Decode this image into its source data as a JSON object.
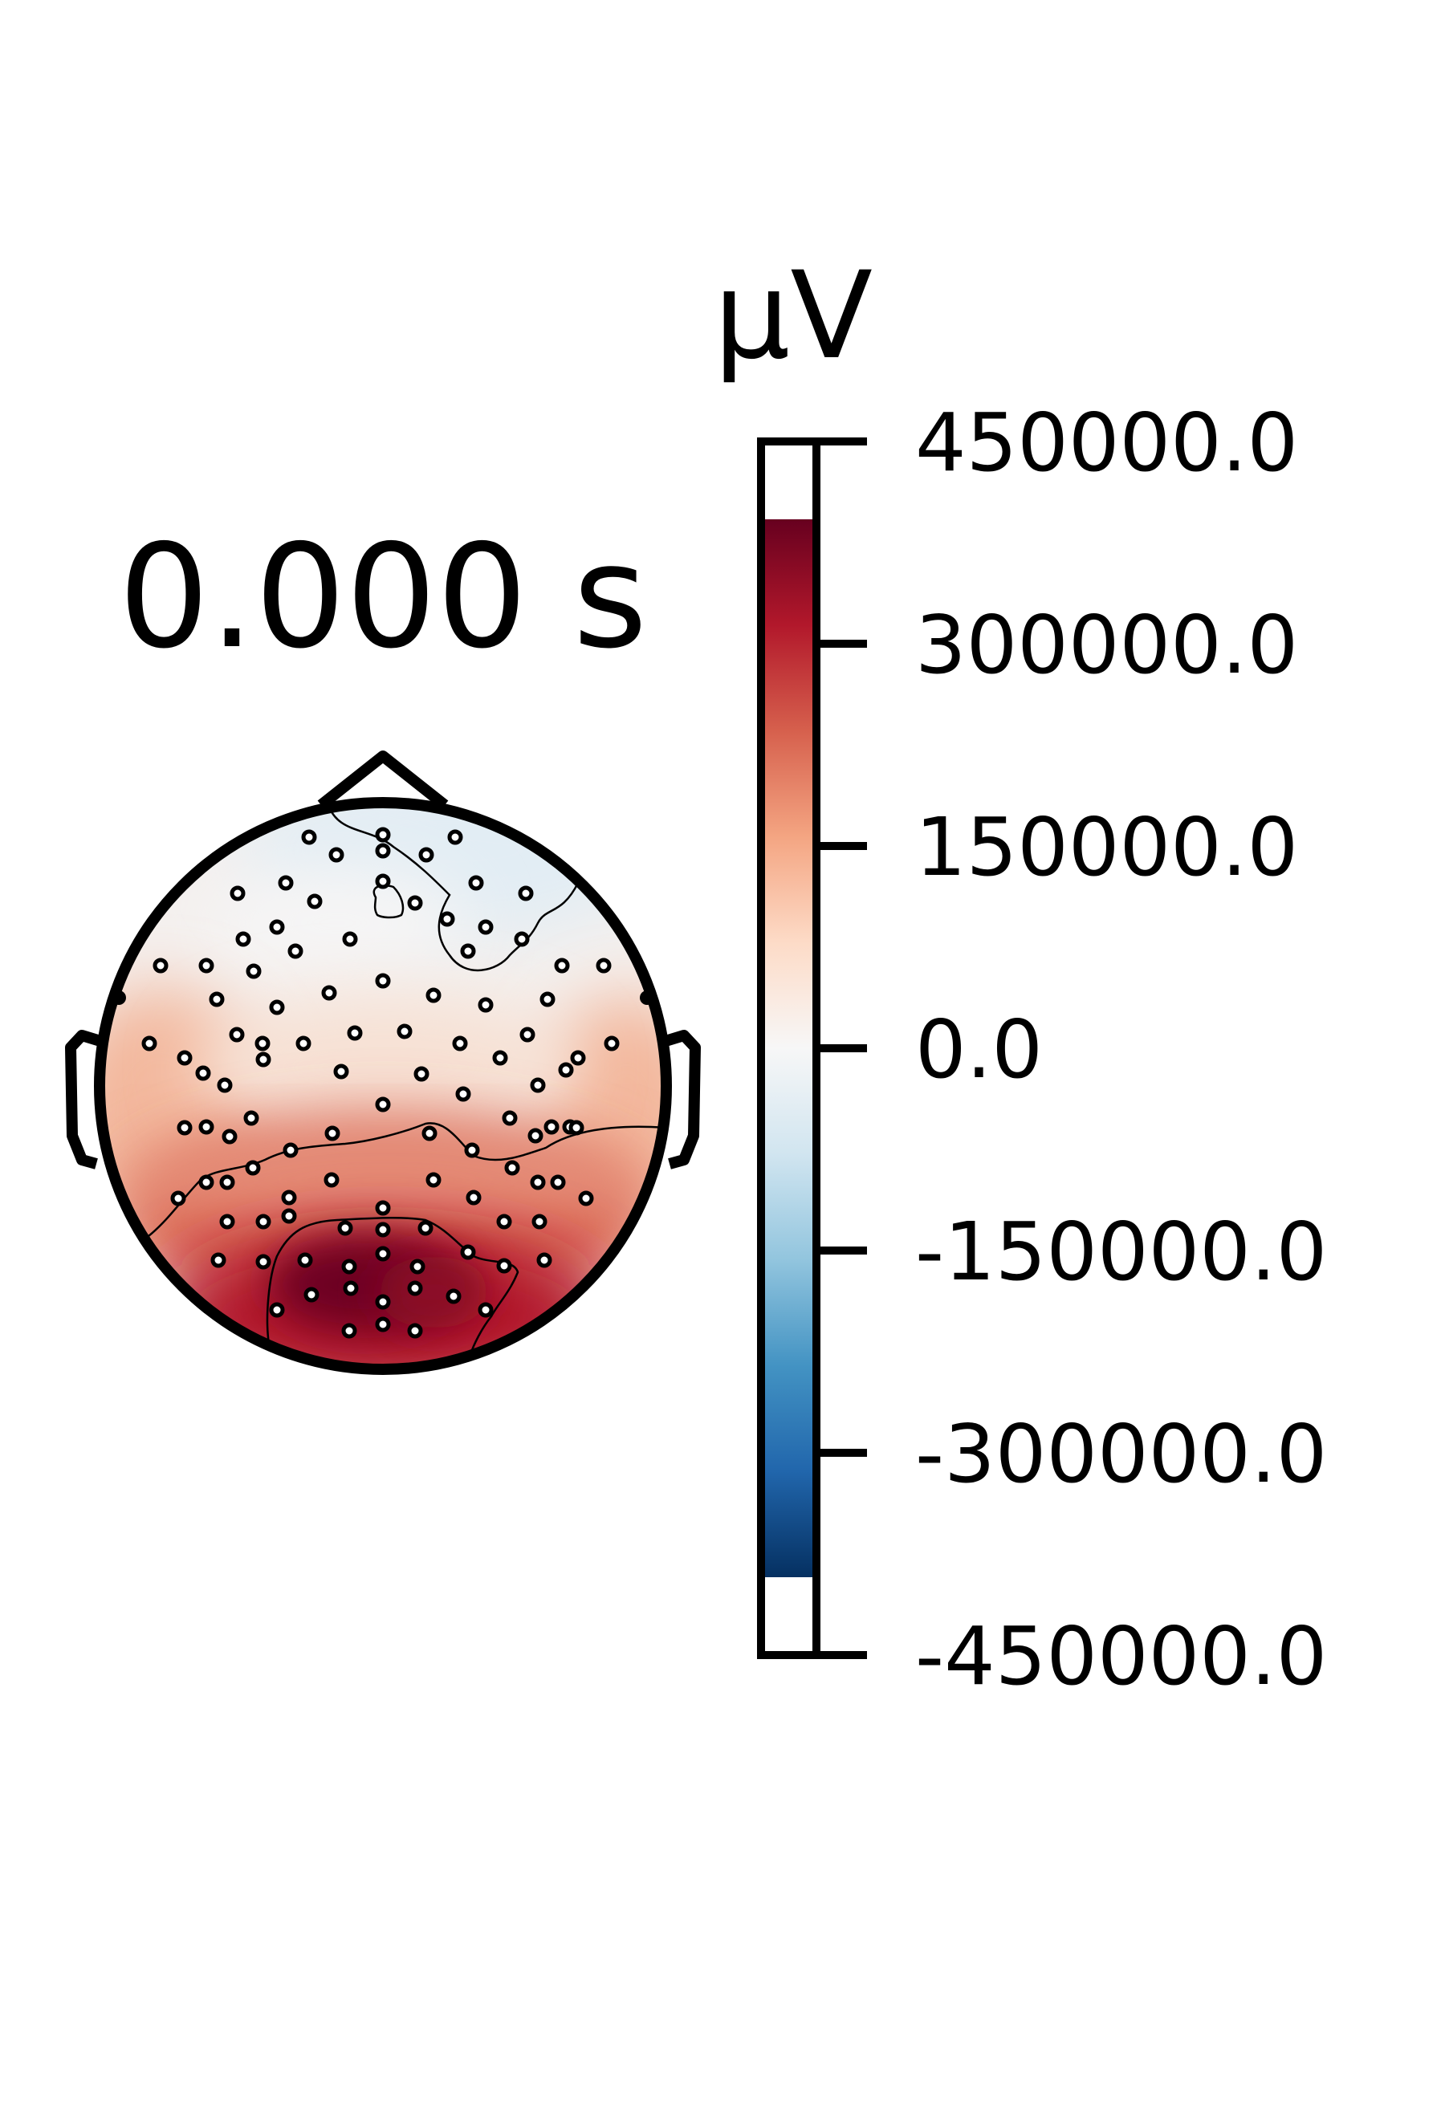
{
  "title": "0.000 s",
  "colorbar": {
    "unit": "µV",
    "ticks": [
      "450000.0",
      "300000.0",
      "150000.0",
      "0.0",
      "-150000.0",
      "-300000.0",
      "-450000.0"
    ],
    "tick_values": [
      450000,
      300000,
      150000,
      0,
      -150000,
      -300000,
      -450000
    ],
    "vmin": -450000,
    "vmax": 450000,
    "data_min": -395000,
    "data_max": 395000,
    "colormap": "RdBu_r",
    "color_stops": [
      "#053061",
      "#2166ac",
      "#4393c3",
      "#92c5de",
      "#d1e5f0",
      "#f7f7f7",
      "#fddbc7",
      "#f4a582",
      "#d6604d",
      "#b2182b",
      "#67001f"
    ]
  },
  "chart_data": {
    "type": "heatmap",
    "title": "0.000 s",
    "subtitle": "",
    "xlabel": "",
    "ylabel": "",
    "colorbar_label": "µV",
    "value_range": [
      -450000,
      450000
    ],
    "grid": false,
    "regions": [
      {
        "region": "frontal",
        "approx_value": -20000
      },
      {
        "region": "central",
        "approx_value": 60000
      },
      {
        "region": "left-temporal",
        "approx_value": 140000
      },
      {
        "region": "right-temporal",
        "approx_value": 140000
      },
      {
        "region": "parietal",
        "approx_value": 230000
      },
      {
        "region": "occipital",
        "approx_value": 380000
      }
    ]
  }
}
